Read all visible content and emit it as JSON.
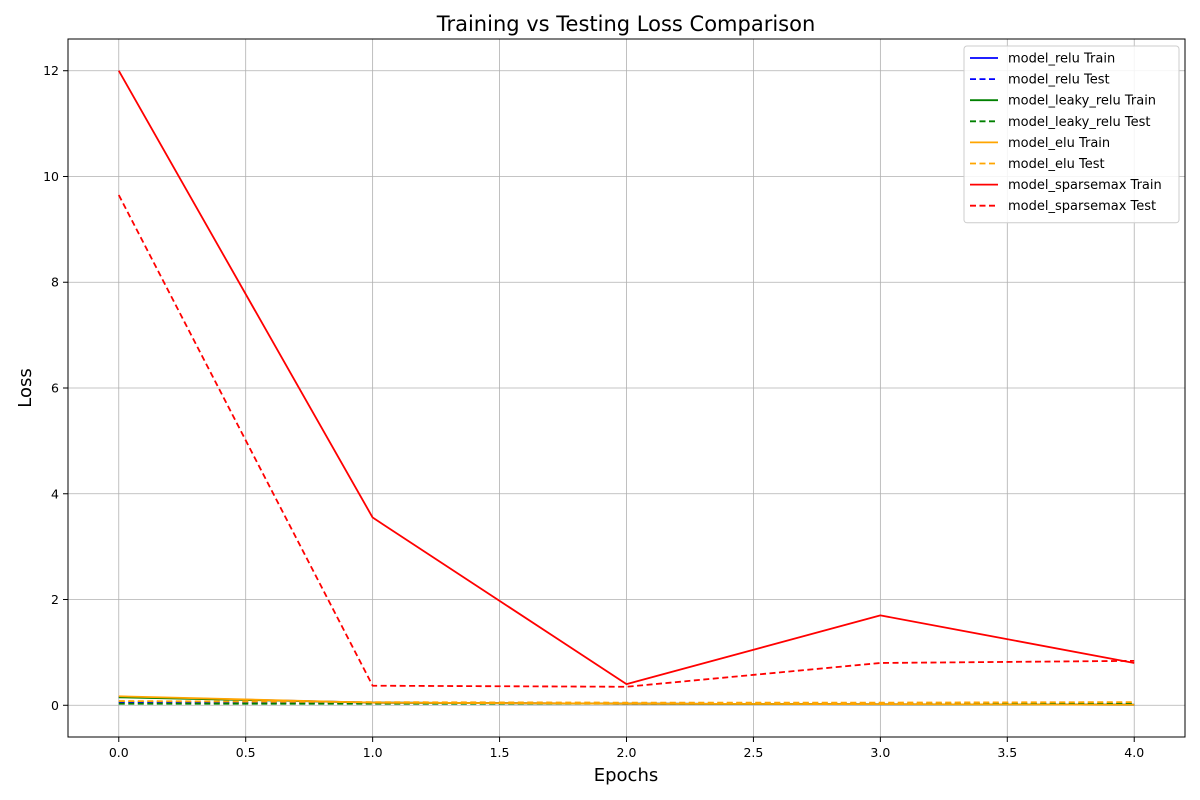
{
  "chart_data": {
    "type": "line",
    "title": "Training vs Testing Loss Comparison",
    "xlabel": "Epochs",
    "ylabel": "Loss",
    "x": [
      0,
      1,
      2,
      3,
      4
    ],
    "xlim": [
      -0.2,
      4.2
    ],
    "ylim": [
      -0.6,
      12.6
    ],
    "xticks": [
      "0.0",
      "0.5",
      "1.0",
      "1.5",
      "2.0",
      "2.5",
      "3.0",
      "3.5",
      "4.0"
    ],
    "xtick_values": [
      0,
      0.5,
      1,
      1.5,
      2,
      2.5,
      3,
      3.5,
      4
    ],
    "yticks": [
      "0",
      "2",
      "4",
      "6",
      "8",
      "10",
      "12"
    ],
    "ytick_values": [
      0,
      2,
      4,
      6,
      8,
      10,
      12
    ],
    "grid": true,
    "legend_position": "top-right",
    "series": [
      {
        "name": "model_relu Train",
        "color": "#0000ff",
        "style": "solid",
        "values": [
          0.16,
          0.05,
          0.03,
          0.02,
          0.01
        ]
      },
      {
        "name": "model_relu Test",
        "color": "#0000ff",
        "style": "dashed",
        "values": [
          0.06,
          0.04,
          0.03,
          0.03,
          0.03
        ]
      },
      {
        "name": "model_leaky_relu Train",
        "color": "#008000",
        "style": "solid",
        "values": [
          0.15,
          0.05,
          0.03,
          0.02,
          0.01
        ]
      },
      {
        "name": "model_leaky_relu Test",
        "color": "#008000",
        "style": "dashed",
        "values": [
          0.03,
          0.03,
          0.03,
          0.03,
          0.03
        ]
      },
      {
        "name": "model_elu Train",
        "color": "#ffa500",
        "style": "solid",
        "values": [
          0.17,
          0.05,
          0.03,
          0.02,
          0.01
        ]
      },
      {
        "name": "model_elu Test",
        "color": "#ffa500",
        "style": "dashed",
        "values": [
          0.08,
          0.06,
          0.05,
          0.05,
          0.06
        ]
      },
      {
        "name": "model_sparsemax Train",
        "color": "#ff0000",
        "style": "solid",
        "values": [
          12.0,
          3.55,
          0.4,
          1.7,
          0.8
        ]
      },
      {
        "name": "model_sparsemax Test",
        "color": "#ff0000",
        "style": "dashed",
        "values": [
          9.65,
          0.37,
          0.35,
          0.8,
          0.84
        ]
      }
    ]
  }
}
